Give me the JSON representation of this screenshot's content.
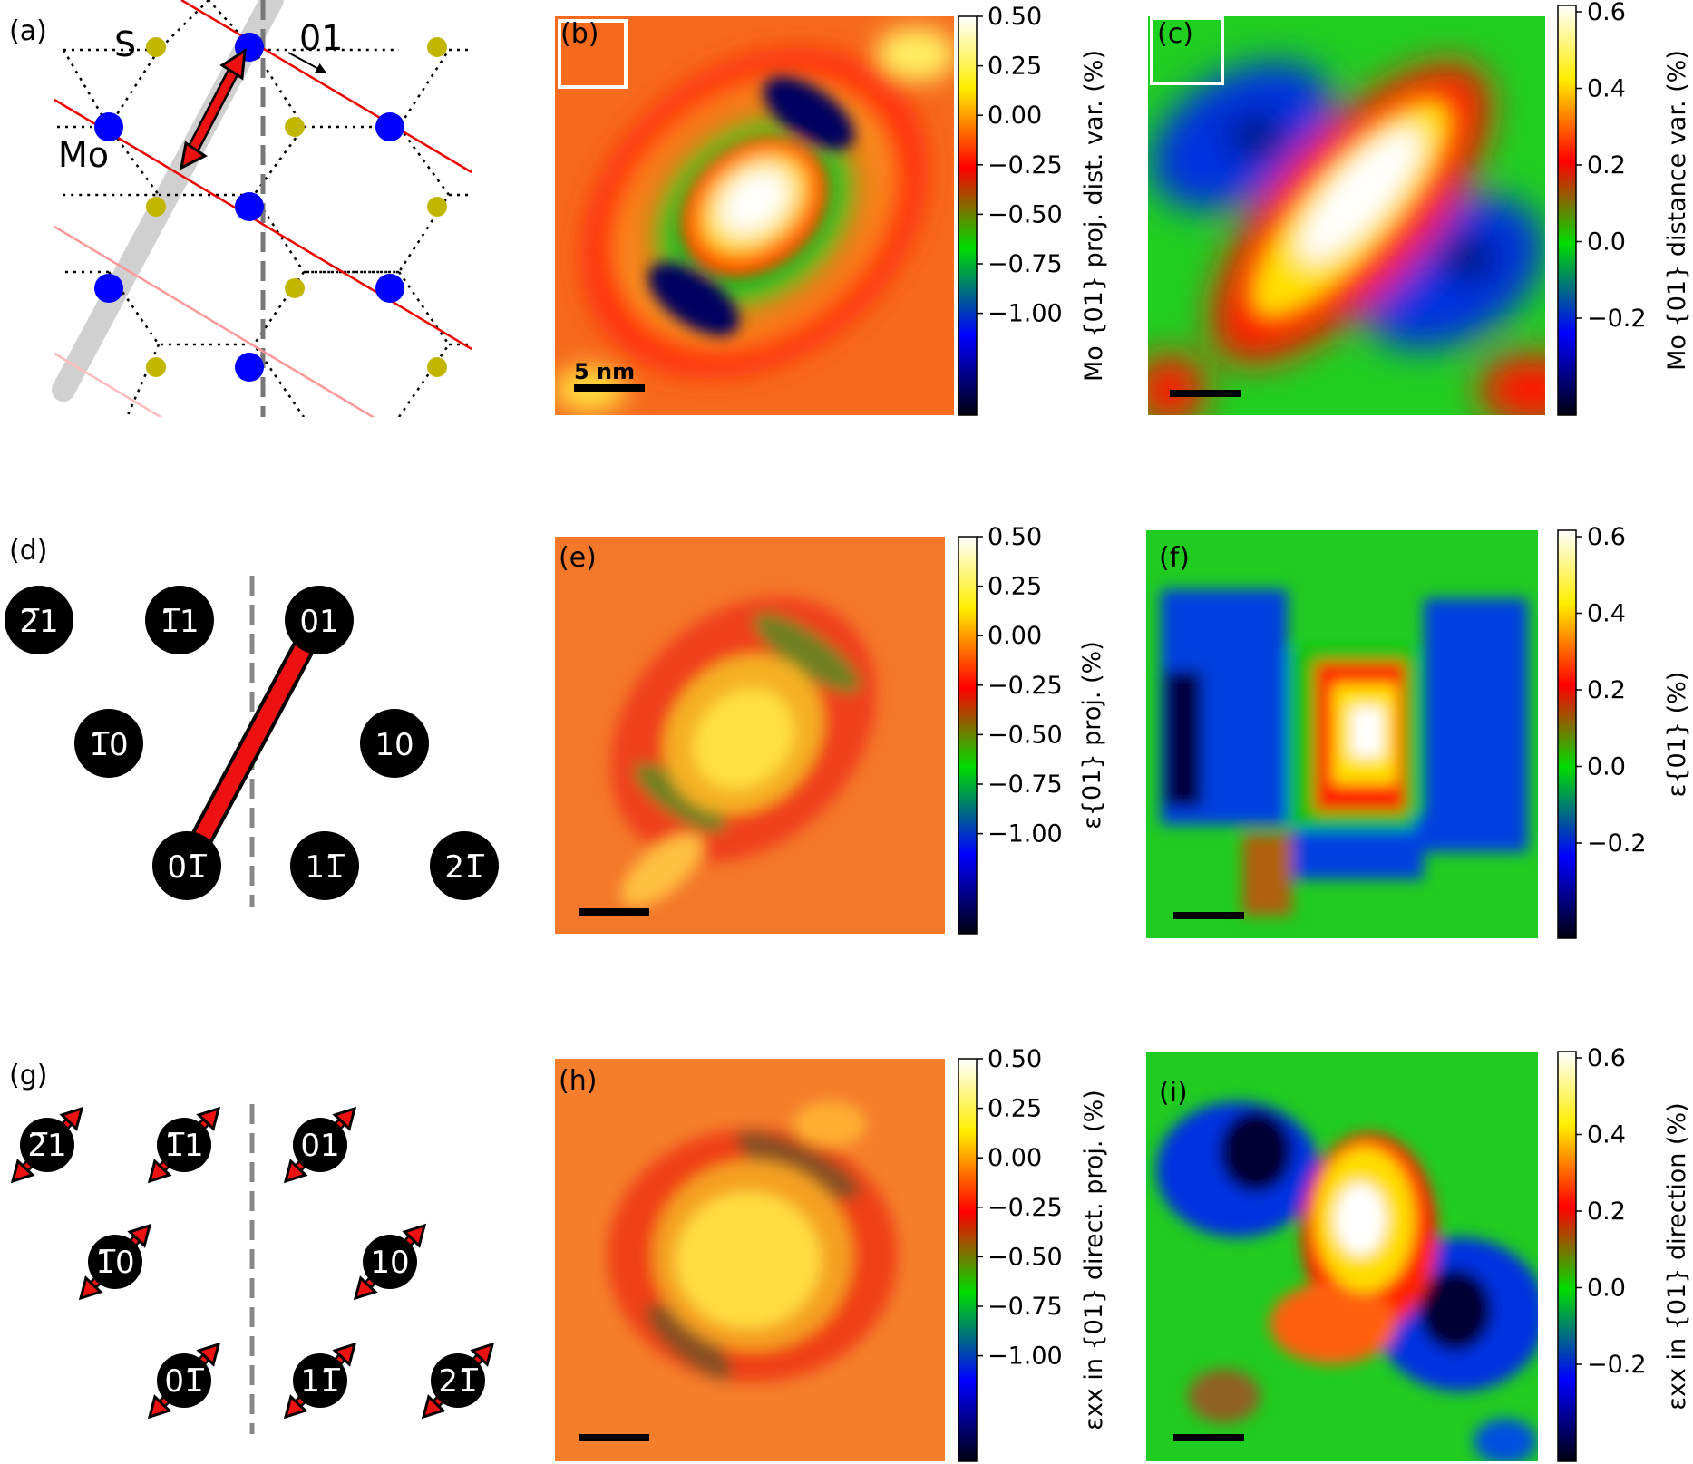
{
  "panel_labels": {
    "a": "(a)",
    "b": "(b)",
    "c": "(c)",
    "d": "(d)",
    "e": "(e)",
    "f": "(f)",
    "g": "(g)",
    "h": "(h)",
    "i": "(i)"
  },
  "lattice": {
    "atom_S": "S",
    "atom_Mo": "Mo",
    "direction": "01",
    "colors": {
      "Mo": "#0000ff",
      "S": "#c2b700",
      "planes": "#ff0000",
      "arrow": "#ee1111"
    }
  },
  "spots_d": {
    "s_m21": "2̅1",
    "s_m11": "1̅1",
    "s_01": "01",
    "s_m10": "1̅0",
    "s_10": "10",
    "s_0m1": "01̅",
    "s_1m1": "11̅",
    "s_2m1": "21̅"
  },
  "spots_g": {
    "s_m21": "2̅1",
    "s_m11": "1̅1",
    "s_01": "01",
    "s_m10": "1̅0",
    "s_10": "10",
    "s_0m1": "01̅",
    "s_1m1": "11̅",
    "s_2m1": "21̅"
  },
  "scalebar": {
    "label": "5 nm"
  },
  "colorbars": {
    "left": {
      "ticks": [
        "0.50",
        "0.25",
        "0.00",
        "−0.25",
        "−0.50",
        "−0.75",
        "−1.00"
      ],
      "label_b": "Mo {01} proj. dist. var. (%)",
      "label_e": "ε{01} proj. (%)",
      "label_h": "εxx in {01} direct. proj. (%)"
    },
    "right": {
      "ticks": [
        "0.6",
        "0.4",
        "0.2",
        "0.0",
        "−0.2"
      ],
      "label_c": "Mo {01} distance var. (%)",
      "label_f": "ε{01} (%)",
      "label_i": "εxx in {01} direction (%)"
    },
    "colormap": [
      "#000000",
      "#0000ff",
      "#00ff00",
      "#ff0000",
      "#ffff00",
      "#ffffff"
    ]
  }
}
